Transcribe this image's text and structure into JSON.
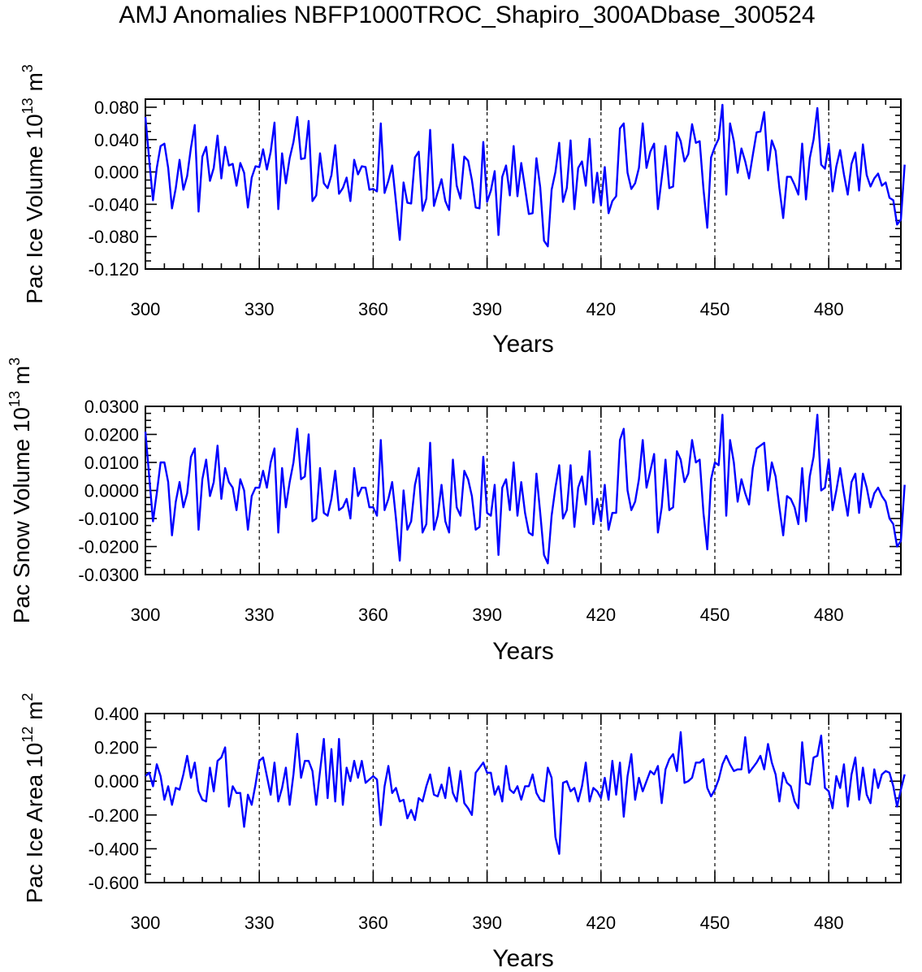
{
  "title": "AMJ Anomalies NBFP1000TROC_Shapiro_300ADbase_300524",
  "line_color": "#0000ff",
  "chart_data": [
    {
      "type": "line",
      "name": "panel-ice-volume",
      "ylabel": {
        "text": "Pac Ice Volume 10",
        "exp": "13",
        "unit_text": " m",
        "unit_exp": "3"
      },
      "xlabel": "Years",
      "xlim": [
        300,
        499
      ],
      "xticks": [
        300,
        330,
        360,
        390,
        420,
        450,
        480
      ],
      "xtick_labels": [
        "300",
        "330",
        "360",
        "390",
        "420",
        "450",
        "480"
      ],
      "vlines": [
        330,
        360,
        390,
        420,
        450,
        480
      ],
      "ylim": [
        -0.12,
        0.09
      ],
      "yticks": [
        0.08,
        0.04,
        0.0,
        -0.04,
        -0.08,
        -0.12
      ],
      "ytick_labels": [
        "0.080",
        "0.040",
        "0.000",
        "-0.040",
        "-0.080",
        "-0.120"
      ],
      "x0": 300,
      "values": [
        0.068,
        0.015,
        -0.035,
        0.005,
        0.032,
        0.035,
        0.005,
        -0.045,
        -0.02,
        0.015,
        -0.022,
        -0.005,
        0.03,
        0.058,
        -0.049,
        0.019,
        0.031,
        -0.011,
        0.005,
        0.045,
        -0.008,
        0.031,
        0.008,
        0.01,
        -0.017,
        0.011,
        -0.001,
        -0.044,
        -0.007,
        0.007,
        0.006,
        0.028,
        0.003,
        0.025,
        0.061,
        -0.046,
        0.023,
        -0.014,
        0.017,
        0.037,
        0.068,
        0.016,
        0.017,
        0.063,
        -0.036,
        -0.029,
        0.023,
        -0.014,
        -0.02,
        -0.004,
        0.033,
        -0.027,
        -0.02,
        -0.007,
        -0.036,
        0.015,
        -0.003,
        0.007,
        0.006,
        -0.022,
        -0.021,
        -0.024,
        0.06,
        -0.026,
        -0.011,
        0.008,
        -0.037,
        -0.084,
        -0.013,
        -0.038,
        -0.039,
        0.018,
        0.025,
        -0.048,
        -0.033,
        0.052,
        -0.042,
        -0.025,
        -0.009,
        -0.036,
        -0.047,
        0.034,
        -0.017,
        -0.033,
        0.019,
        0.014,
        -0.01,
        -0.044,
        -0.045,
        0.037,
        -0.037,
        -0.023,
        0.001,
        -0.078,
        -0.006,
        0.008,
        -0.029,
        0.032,
        -0.03,
        0.011,
        -0.02,
        -0.052,
        -0.051,
        0.017,
        -0.019,
        -0.085,
        -0.092,
        -0.022,
        0.0,
        0.036,
        -0.037,
        -0.02,
        0.039,
        -0.046,
        0.005,
        0.013,
        -0.017,
        0.041,
        -0.038,
        -0.001,
        -0.041,
        0.006,
        -0.051,
        -0.036,
        -0.03,
        0.054,
        0.06,
        -0.001,
        -0.021,
        -0.014,
        0.005,
        0.06,
        0.005,
        0.025,
        0.035,
        -0.046,
        -0.008,
        0.032,
        -0.02,
        -0.018,
        0.049,
        0.038,
        0.013,
        0.022,
        0.059,
        0.036,
        0.038,
        -0.021,
        -0.069,
        0.018,
        0.031,
        0.041,
        0.083,
        -0.028,
        0.06,
        0.038,
        -0.001,
        0.029,
        0.013,
        -0.008,
        0.021,
        0.049,
        0.05,
        0.074,
        0.002,
        0.039,
        0.026,
        -0.02,
        -0.057,
        -0.006,
        -0.006,
        -0.016,
        -0.028,
        0.035,
        -0.034,
        0.017,
        0.04,
        0.079,
        0.009,
        0.004,
        0.035,
        -0.024,
        0.007,
        0.027,
        -0.003,
        -0.028,
        0.01,
        0.024,
        -0.023,
        0.034,
        -0.004,
        -0.018,
        -0.008,
        -0.002,
        -0.017,
        -0.013,
        -0.032,
        -0.035,
        -0.065,
        -0.059,
        0.009
      ]
    },
    {
      "type": "line",
      "name": "panel-snow-volume",
      "ylabel": {
        "text": "Pac Snow Volume 10",
        "exp": "13",
        "unit_text": " m",
        "unit_exp": "3"
      },
      "xlabel": "Years",
      "xlim": [
        300,
        499
      ],
      "xticks": [
        300,
        330,
        360,
        390,
        420,
        450,
        480
      ],
      "xtick_labels": [
        "300",
        "330",
        "360",
        "390",
        "420",
        "450",
        "480"
      ],
      "vlines": [
        330,
        360,
        390,
        420,
        450,
        480
      ],
      "ylim": [
        -0.03,
        0.03
      ],
      "yticks": [
        0.03,
        0.02,
        0.01,
        0.0,
        -0.01,
        -0.02,
        -0.03
      ],
      "ytick_labels": [
        "0.0300",
        "0.0200",
        "0.0100",
        "0.0000",
        "-0.0100",
        "-0.0200",
        "-0.0300"
      ],
      "x0": 300,
      "values": [
        0.021,
        0.005,
        -0.011,
        -0.001,
        0.01,
        0.01,
        0.003,
        -0.016,
        -0.004,
        0.003,
        -0.006,
        -0.001,
        0.012,
        0.015,
        -0.014,
        0.004,
        0.011,
        -0.002,
        0.003,
        0.016,
        -0.003,
        0.008,
        0.003,
        0.001,
        -0.007,
        0.004,
        0.0,
        -0.014,
        -0.002,
        0.001,
        0.001,
        0.007,
        0.001,
        0.01,
        0.015,
        -0.015,
        0.008,
        -0.006,
        0.003,
        0.01,
        0.022,
        0.004,
        0.005,
        0.02,
        -0.011,
        -0.01,
        0.008,
        -0.008,
        -0.009,
        -0.003,
        0.007,
        -0.007,
        -0.006,
        -0.003,
        -0.01,
        0.008,
        -0.002,
        0.001,
        0.001,
        -0.006,
        -0.006,
        -0.009,
        0.018,
        -0.007,
        -0.003,
        0.003,
        -0.01,
        -0.025,
        0.0,
        -0.014,
        -0.011,
        0.002,
        0.008,
        -0.015,
        -0.012,
        0.017,
        -0.014,
        -0.009,
        0.002,
        -0.011,
        -0.015,
        0.011,
        -0.006,
        -0.009,
        0.007,
        0.004,
        -0.002,
        -0.014,
        -0.013,
        0.012,
        -0.008,
        -0.009,
        0.002,
        -0.023,
        0.001,
        0.004,
        -0.007,
        0.01,
        -0.009,
        0.003,
        -0.008,
        -0.015,
        -0.016,
        0.006,
        -0.008,
        -0.023,
        -0.026,
        -0.009,
        0.001,
        0.009,
        -0.01,
        -0.007,
        0.009,
        -0.013,
        0.001,
        0.005,
        -0.005,
        0.014,
        -0.012,
        -0.003,
        -0.011,
        0.002,
        -0.014,
        -0.008,
        -0.008,
        0.018,
        0.022,
        0.0,
        -0.007,
        -0.004,
        0.004,
        0.018,
        0.001,
        0.007,
        0.013,
        -0.015,
        -0.006,
        0.011,
        -0.007,
        -0.006,
        0.014,
        0.011,
        0.003,
        0.006,
        0.018,
        0.01,
        0.011,
        -0.008,
        -0.021,
        0.004,
        0.01,
        0.009,
        0.027,
        -0.009,
        0.018,
        0.01,
        -0.004,
        0.004,
        -0.001,
        -0.005,
        0.008,
        0.015,
        0.016,
        0.017,
        0.0,
        0.01,
        0.005,
        -0.006,
        -0.016,
        -0.002,
        -0.003,
        -0.006,
        -0.012,
        0.008,
        -0.011,
        0.005,
        0.012,
        0.027,
        0.0,
        0.001,
        0.011,
        -0.007,
        0.0,
        0.008,
        -0.001,
        -0.009,
        0.003,
        0.006,
        -0.008,
        0.006,
        0.001,
        -0.006,
        -0.001,
        0.001,
        -0.002,
        -0.004,
        -0.01,
        -0.012,
        -0.02,
        -0.018,
        0.002
      ]
    },
    {
      "type": "line",
      "name": "panel-ice-area",
      "ylabel": {
        "text": "Pac Ice Area 10",
        "exp": "12",
        "unit_text": " m",
        "unit_exp": "2"
      },
      "xlabel": "Years",
      "xlim": [
        300,
        499
      ],
      "xticks": [
        300,
        330,
        360,
        390,
        420,
        450,
        480
      ],
      "xtick_labels": [
        "300",
        "330",
        "360",
        "390",
        "420",
        "450",
        "480"
      ],
      "vlines": [
        330,
        360,
        390,
        420,
        450,
        480
      ],
      "ylim": [
        -0.6,
        0.4
      ],
      "yticks": [
        0.4,
        0.2,
        0.0,
        -0.2,
        -0.4,
        -0.6
      ],
      "ytick_labels": [
        "0.400",
        "0.200",
        "0.000",
        "-0.200",
        "-0.400",
        "-0.600"
      ],
      "x0": 300,
      "values": [
        0.03,
        0.05,
        -0.03,
        0.1,
        0.03,
        -0.11,
        -0.03,
        -0.14,
        -0.04,
        -0.05,
        0.04,
        0.15,
        0.02,
        0.11,
        -0.06,
        -0.11,
        -0.12,
        0.08,
        -0.06,
        0.12,
        0.14,
        0.2,
        -0.15,
        -0.03,
        -0.07,
        -0.07,
        -0.27,
        -0.08,
        -0.14,
        -0.02,
        0.12,
        0.14,
        0.03,
        -0.08,
        0.11,
        -0.12,
        -0.04,
        0.08,
        -0.14,
        0.04,
        0.28,
        0.02,
        0.12,
        0.12,
        0.06,
        -0.14,
        0.06,
        0.25,
        -0.1,
        0.19,
        -0.12,
        0.25,
        -0.14,
        0.08,
        0.0,
        0.12,
        0.02,
        0.12,
        -0.01,
        0.01,
        0.03,
        0.01,
        -0.26,
        -0.03,
        0.09,
        -0.07,
        -0.04,
        -0.12,
        -0.11,
        -0.22,
        -0.17,
        -0.23,
        -0.1,
        -0.12,
        -0.03,
        0.04,
        -0.08,
        -0.09,
        -0.02,
        -0.1,
        0.08,
        -0.07,
        -0.12,
        0.06,
        -0.13,
        -0.16,
        -0.2,
        0.05,
        0.08,
        0.11,
        0.05,
        0.05,
        -0.08,
        -0.03,
        -0.12,
        0.09,
        -0.05,
        -0.07,
        -0.03,
        -0.11,
        -0.03,
        -0.03,
        0.04,
        -0.07,
        -0.11,
        -0.12,
        0.08,
        0.02,
        -0.33,
        -0.43,
        -0.01,
        0.0,
        -0.06,
        -0.04,
        -0.12,
        -0.03,
        0.11,
        -0.12,
        -0.04,
        -0.06,
        -0.1,
        0.02,
        -0.11,
        0.12,
        -0.08,
        0.11,
        -0.21,
        0.03,
        0.16,
        -0.11,
        0.02,
        -0.06,
        0.0,
        0.06,
        0.04,
        0.09,
        -0.13,
        0.07,
        0.13,
        0.16,
        0.06,
        0.29,
        -0.01,
        0.0,
        0.02,
        0.11,
        0.11,
        0.13,
        -0.04,
        -0.09,
        -0.05,
        0.01,
        0.1,
        0.15,
        0.1,
        0.06,
        0.07,
        0.07,
        0.26,
        0.05,
        0.08,
        0.11,
        0.15,
        0.07,
        0.22,
        0.11,
        0.04,
        -0.12,
        0.05,
        -0.01,
        -0.03,
        -0.12,
        -0.16,
        0.23,
        -0.01,
        -0.02,
        0.14,
        0.15,
        0.27,
        -0.04,
        -0.06,
        -0.16,
        0.03,
        -0.04,
        0.1,
        -0.15,
        0.04,
        0.14,
        -0.11,
        0.08,
        -0.08,
        -0.13,
        0.07,
        -0.04,
        0.04,
        0.06,
        0.05,
        -0.03,
        -0.15,
        -0.05,
        0.04
      ]
    }
  ]
}
